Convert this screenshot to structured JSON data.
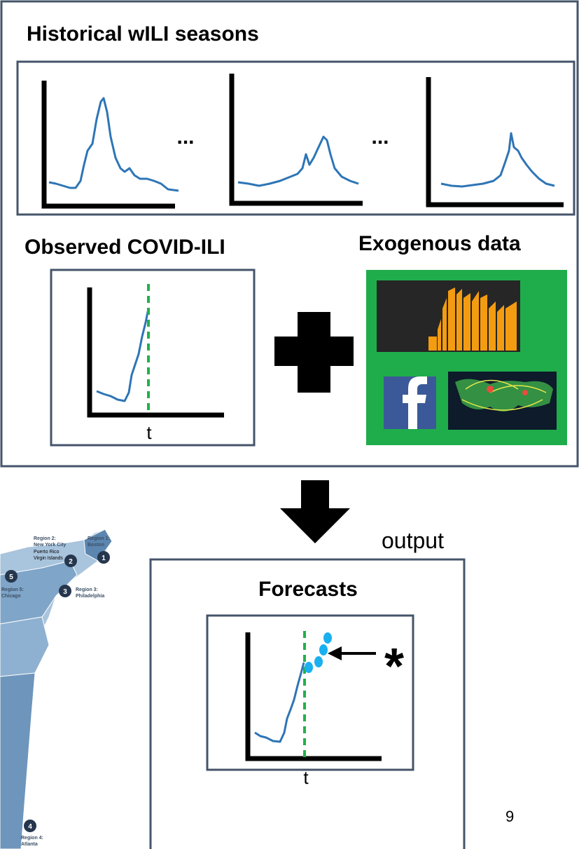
{
  "title": "Historical wILI seasons",
  "ellipses": [
    "...",
    "..."
  ],
  "observed": {
    "title": "Observed COVID-ILI",
    "axis_label": "t"
  },
  "exogenous": {
    "title": "Exogenous data"
  },
  "output_label": "output",
  "forecasts": {
    "title": "Forecasts",
    "axis_label": "t",
    "marker": "*"
  },
  "map": {
    "regions": [
      {
        "number": "1",
        "label": "Region 1:",
        "city": "Boston"
      },
      {
        "number": "2",
        "label": "Region 2:",
        "city": "New York City"
      },
      {
        "number": "3",
        "label": "Region 3:",
        "city": "Philadelphia"
      },
      {
        "number": "4",
        "label": "Region 4:",
        "city": "Atlanta"
      },
      {
        "number": "5",
        "label": "Region 5:",
        "city": "Chicago"
      }
    ],
    "extra_labels": [
      "Puerto Rico",
      "Virgin Islands"
    ]
  },
  "page_number": 9
}
